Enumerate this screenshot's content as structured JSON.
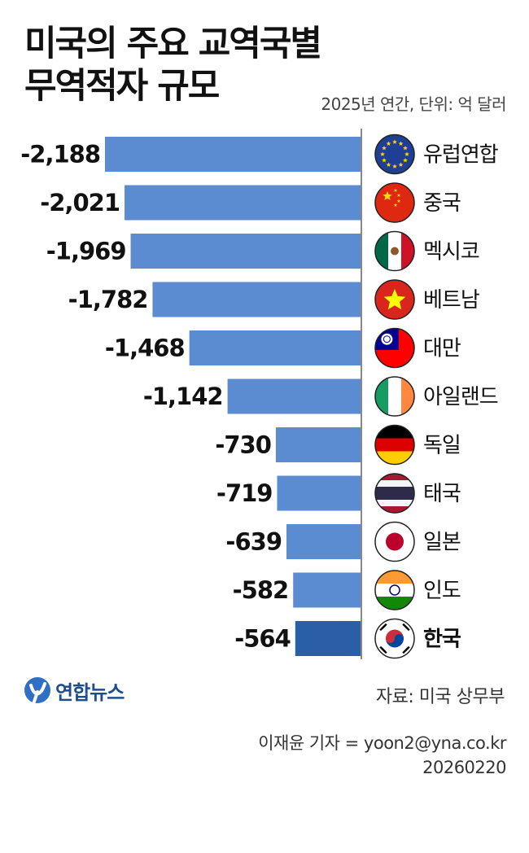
{
  "title_line1": "미국의 주요 교역국별",
  "title_line2": "무역적자 규모",
  "subtitle": "2025년 연간, 단위: 억 달러",
  "chart_data": {
    "type": "bar",
    "orientation": "horizontal",
    "categories": [
      "유럽연합",
      "중국",
      "멕시코",
      "베트남",
      "대만",
      "아일랜드",
      "독일",
      "태국",
      "일본",
      "인도",
      "한국"
    ],
    "values": [
      -2188,
      -2021,
      -1969,
      -1782,
      -1468,
      -1142,
      -730,
      -719,
      -639,
      -582,
      -564
    ],
    "value_labels": [
      "-2,188",
      "-2,021",
      "-1,969",
      "-1,782",
      "-1,468",
      "-1,142",
      "-730",
      "-719",
      "-639",
      "-582",
      "-564"
    ],
    "flag_icons": [
      "eu-flag-icon",
      "china-flag-icon",
      "mexico-flag-icon",
      "vietnam-flag-icon",
      "taiwan-flag-icon",
      "ireland-flag-icon",
      "germany-flag-icon",
      "thailand-flag-icon",
      "japan-flag-icon",
      "india-flag-icon",
      "korea-flag-icon"
    ],
    "highlight": "한국",
    "bar_color": "#5b8bd0",
    "highlight_color": "#2a5fa8"
  },
  "logo_text": "연합뉴스",
  "source": "자료: 미국 상무부",
  "reporter": "이재윤 기자 = yoon2@yna.co.kr",
  "date": "20260220"
}
